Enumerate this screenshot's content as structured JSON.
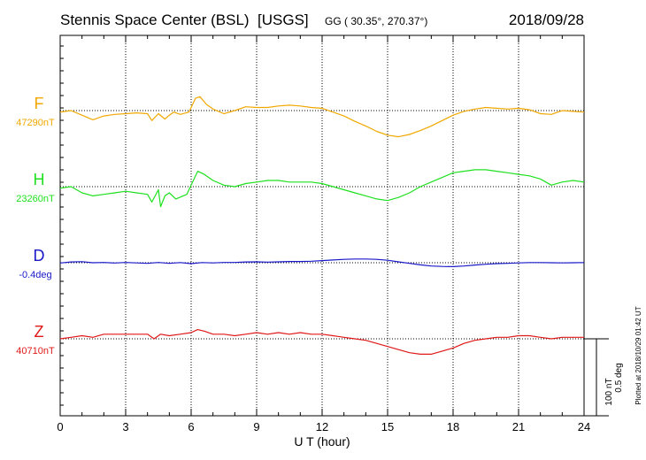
{
  "header": {
    "station": "Stennis Space Center (BSL)  [USGS]",
    "coords": "GG ( 30.35°, 270.37°)",
    "date": "2018/09/28"
  },
  "footer": {
    "plotted": "Plotted at 2018/10/29 01:42 UT"
  },
  "colors": {
    "F": "#f0a800",
    "H": "#1ee01e",
    "D": "#1818c8",
    "Z": "#e01818"
  },
  "chart_data": {
    "type": "line",
    "title": "Stennis Space Center (BSL)  [USGS]",
    "xlabel": "U T (hour)",
    "xlim": [
      0,
      24
    ],
    "xticks": [
      "0",
      "3",
      "6",
      "9",
      "12",
      "15",
      "18",
      "21",
      "24"
    ],
    "grid": true,
    "scale_bar": {
      "line1": "100 nT",
      "line2": "0.5 deg"
    },
    "series": [
      {
        "name": "F",
        "baseline_label": "47290nT",
        "baseline": 47290,
        "unit": "nT",
        "points": [
          [
            0,
            47288
          ],
          [
            0.5,
            47290
          ],
          [
            1,
            47284
          ],
          [
            1.5,
            47278
          ],
          [
            2,
            47283
          ],
          [
            2.5,
            47285
          ],
          [
            3,
            47286
          ],
          [
            3.5,
            47287
          ],
          [
            4,
            47286
          ],
          [
            4.2,
            47277
          ],
          [
            4.5,
            47286
          ],
          [
            4.8,
            47279
          ],
          [
            5,
            47284
          ],
          [
            5.2,
            47288
          ],
          [
            5.5,
            47285
          ],
          [
            5.9,
            47288
          ],
          [
            6.2,
            47306
          ],
          [
            6.4,
            47308
          ],
          [
            6.7,
            47298
          ],
          [
            7,
            47292
          ],
          [
            7.5,
            47286
          ],
          [
            8,
            47290
          ],
          [
            8.5,
            47295
          ],
          [
            9,
            47294
          ],
          [
            9.5,
            47294
          ],
          [
            10,
            47296
          ],
          [
            10.5,
            47297
          ],
          [
            11,
            47296
          ],
          [
            11.5,
            47294
          ],
          [
            12,
            47293
          ],
          [
            12.5,
            47288
          ],
          [
            13,
            47283
          ],
          [
            13.5,
            47276
          ],
          [
            14,
            47270
          ],
          [
            14.5,
            47263
          ],
          [
            15,
            47258
          ],
          [
            15.5,
            47256
          ],
          [
            16,
            47259
          ],
          [
            16.5,
            47264
          ],
          [
            17,
            47270
          ],
          [
            17.5,
            47277
          ],
          [
            18,
            47284
          ],
          [
            18.5,
            47289
          ],
          [
            19,
            47292
          ],
          [
            19.5,
            47294
          ],
          [
            20,
            47293
          ],
          [
            20.5,
            47292
          ],
          [
            21,
            47293
          ],
          [
            21.5,
            47291
          ],
          [
            22,
            47286
          ],
          [
            22.5,
            47285
          ],
          [
            23,
            47290
          ],
          [
            23.5,
            47289
          ],
          [
            24,
            47288
          ]
        ]
      },
      {
        "name": "H",
        "baseline_label": "23260nT",
        "baseline": 23260,
        "unit": "nT",
        "points": [
          [
            0,
            23258
          ],
          [
            0.5,
            23260
          ],
          [
            1,
            23252
          ],
          [
            1.5,
            23248
          ],
          [
            2,
            23250
          ],
          [
            2.5,
            23252
          ],
          [
            3,
            23254
          ],
          [
            3.5,
            23252
          ],
          [
            4,
            23250
          ],
          [
            4.2,
            23240
          ],
          [
            4.5,
            23256
          ],
          [
            4.6,
            23234
          ],
          [
            4.8,
            23248
          ],
          [
            5,
            23252
          ],
          [
            5.3,
            23244
          ],
          [
            5.8,
            23250
          ],
          [
            6,
            23262
          ],
          [
            6.3,
            23280
          ],
          [
            6.6,
            23276
          ],
          [
            7,
            23268
          ],
          [
            7.5,
            23262
          ],
          [
            8,
            23260
          ],
          [
            8.5,
            23264
          ],
          [
            9,
            23266
          ],
          [
            9.5,
            23268
          ],
          [
            10,
            23268
          ],
          [
            10.5,
            23266
          ],
          [
            11,
            23266
          ],
          [
            11.5,
            23266
          ],
          [
            12,
            23264
          ],
          [
            12.5,
            23260
          ],
          [
            13,
            23256
          ],
          [
            13.5,
            23252
          ],
          [
            14,
            23248
          ],
          [
            14.5,
            23244
          ],
          [
            15,
            23242
          ],
          [
            15.5,
            23246
          ],
          [
            16,
            23252
          ],
          [
            16.5,
            23260
          ],
          [
            17,
            23266
          ],
          [
            17.5,
            23272
          ],
          [
            18,
            23278
          ],
          [
            18.5,
            23280
          ],
          [
            19,
            23282
          ],
          [
            19.5,
            23282
          ],
          [
            20,
            23280
          ],
          [
            20.5,
            23278
          ],
          [
            21,
            23276
          ],
          [
            21.5,
            23274
          ],
          [
            22,
            23270
          ],
          [
            22.5,
            23262
          ],
          [
            23,
            23266
          ],
          [
            23.5,
            23268
          ],
          [
            24,
            23266
          ]
        ]
      },
      {
        "name": "D",
        "baseline_label": "-0.4deg",
        "baseline": -0.4,
        "unit": "deg",
        "points": [
          [
            0,
            -0.402
          ],
          [
            0.5,
            -0.395
          ],
          [
            1,
            -0.393
          ],
          [
            1.5,
            -0.4
          ],
          [
            2,
            -0.398
          ],
          [
            2.5,
            -0.402
          ],
          [
            3,
            -0.398
          ],
          [
            3.5,
            -0.401
          ],
          [
            4,
            -0.404
          ],
          [
            4.5,
            -0.398
          ],
          [
            5,
            -0.404
          ],
          [
            5.5,
            -0.399
          ],
          [
            6,
            -0.406
          ],
          [
            6.5,
            -0.399
          ],
          [
            7,
            -0.401
          ],
          [
            7.5,
            -0.398
          ],
          [
            8,
            -0.398
          ],
          [
            8.5,
            -0.395
          ],
          [
            9,
            -0.394
          ],
          [
            9.5,
            -0.396
          ],
          [
            10,
            -0.394
          ],
          [
            10.5,
            -0.392
          ],
          [
            11,
            -0.392
          ],
          [
            11.5,
            -0.39
          ],
          [
            12,
            -0.386
          ],
          [
            12.5,
            -0.382
          ],
          [
            13,
            -0.378
          ],
          [
            13.5,
            -0.376
          ],
          [
            14,
            -0.376
          ],
          [
            14.5,
            -0.378
          ],
          [
            15,
            -0.384
          ],
          [
            15.5,
            -0.394
          ],
          [
            16,
            -0.404
          ],
          [
            16.5,
            -0.414
          ],
          [
            17,
            -0.421
          ],
          [
            17.5,
            -0.424
          ],
          [
            18,
            -0.425
          ],
          [
            18.5,
            -0.421
          ],
          [
            19,
            -0.415
          ],
          [
            19.5,
            -0.41
          ],
          [
            20,
            -0.406
          ],
          [
            20.5,
            -0.404
          ],
          [
            21,
            -0.401
          ],
          [
            21.5,
            -0.399
          ],
          [
            22,
            -0.399
          ],
          [
            22.5,
            -0.4
          ],
          [
            23,
            -0.401
          ],
          [
            23.5,
            -0.4
          ],
          [
            24,
            -0.399
          ]
        ]
      },
      {
        "name": "Z",
        "baseline_label": "40710nT",
        "baseline": 40710,
        "unit": "nT",
        "points": [
          [
            0,
            40710
          ],
          [
            0.5,
            40712
          ],
          [
            1,
            40714
          ],
          [
            1.5,
            40712
          ],
          [
            2,
            40716
          ],
          [
            2.5,
            40716
          ],
          [
            3,
            40716
          ],
          [
            3.5,
            40716
          ],
          [
            4,
            40716
          ],
          [
            4.3,
            40710
          ],
          [
            4.6,
            40716
          ],
          [
            5,
            40714
          ],
          [
            5.5,
            40716
          ],
          [
            6,
            40718
          ],
          [
            6.3,
            40722
          ],
          [
            6.6,
            40720
          ],
          [
            7,
            40716
          ],
          [
            7.5,
            40716
          ],
          [
            8,
            40714
          ],
          [
            8.5,
            40716
          ],
          [
            9,
            40718
          ],
          [
            9.5,
            40716
          ],
          [
            10,
            40718
          ],
          [
            10.5,
            40716
          ],
          [
            11,
            40718
          ],
          [
            11.5,
            40716
          ],
          [
            12,
            40716
          ],
          [
            12.5,
            40714
          ],
          [
            13,
            40712
          ],
          [
            13.5,
            40710
          ],
          [
            14,
            40708
          ],
          [
            14.5,
            40704
          ],
          [
            15,
            40700
          ],
          [
            15.5,
            40696
          ],
          [
            16,
            40692
          ],
          [
            16.5,
            40690
          ],
          [
            17,
            40690
          ],
          [
            17.5,
            40694
          ],
          [
            18,
            40698
          ],
          [
            18.5,
            40704
          ],
          [
            19,
            40708
          ],
          [
            19.5,
            40710
          ],
          [
            20,
            40712
          ],
          [
            20.5,
            40712
          ],
          [
            21,
            40714
          ],
          [
            21.5,
            40714
          ],
          [
            22,
            40712
          ],
          [
            22.5,
            40710
          ],
          [
            23,
            40712
          ],
          [
            23.5,
            40712
          ],
          [
            24,
            40712
          ]
        ]
      }
    ]
  }
}
